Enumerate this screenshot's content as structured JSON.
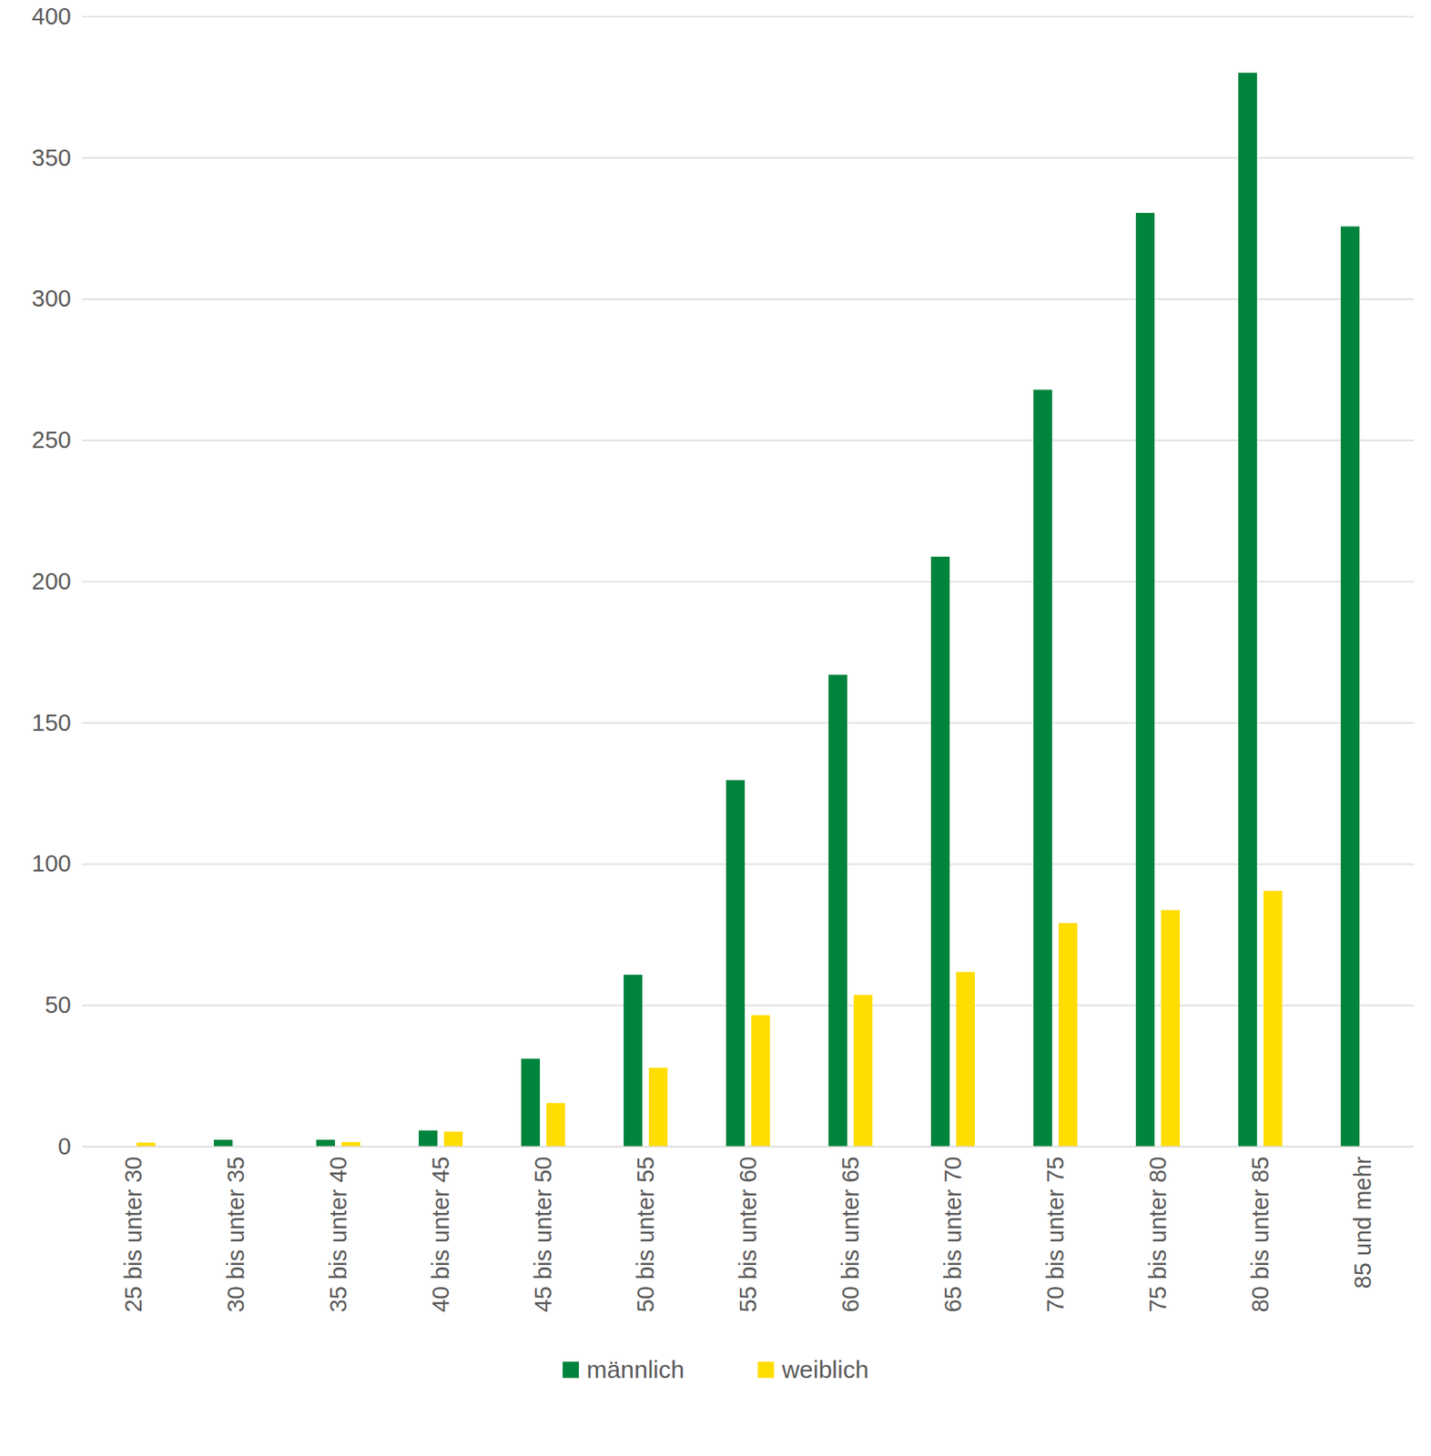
{
  "chart_data": {
    "type": "bar",
    "categories": [
      "25 bis unter 30",
      "30 bis unter 35",
      "35 bis unter 40",
      "40 bis unter 45",
      "45 bis unter 50",
      "50 bis unter 55",
      "55 bis unter 60",
      "60 bis unter 65",
      "65 bis unter 70",
      "70 bis unter 75",
      "75 bis unter 80",
      "80 bis unter 85",
      "85 und mehr"
    ],
    "series": [
      {
        "name": "männlich",
        "color": "#00843d",
        "values": [
          null,
          2.3,
          2.3,
          5.6,
          31,
          60.7,
          129.6,
          166.9,
          208.7,
          267.8,
          330.4,
          380,
          325.6
        ]
      },
      {
        "name": "weiblich",
        "color": "#ffdd00",
        "values": [
          1.3,
          null,
          1.5,
          5.2,
          15.3,
          27.8,
          46.4,
          53.6,
          61.7,
          79,
          83.6,
          90.4,
          null
        ]
      }
    ],
    "ylim": [
      0,
      400
    ],
    "yticks": [
      0,
      50,
      100,
      150,
      200,
      250,
      300,
      350,
      400
    ],
    "grid": true,
    "legend": "bottom"
  }
}
